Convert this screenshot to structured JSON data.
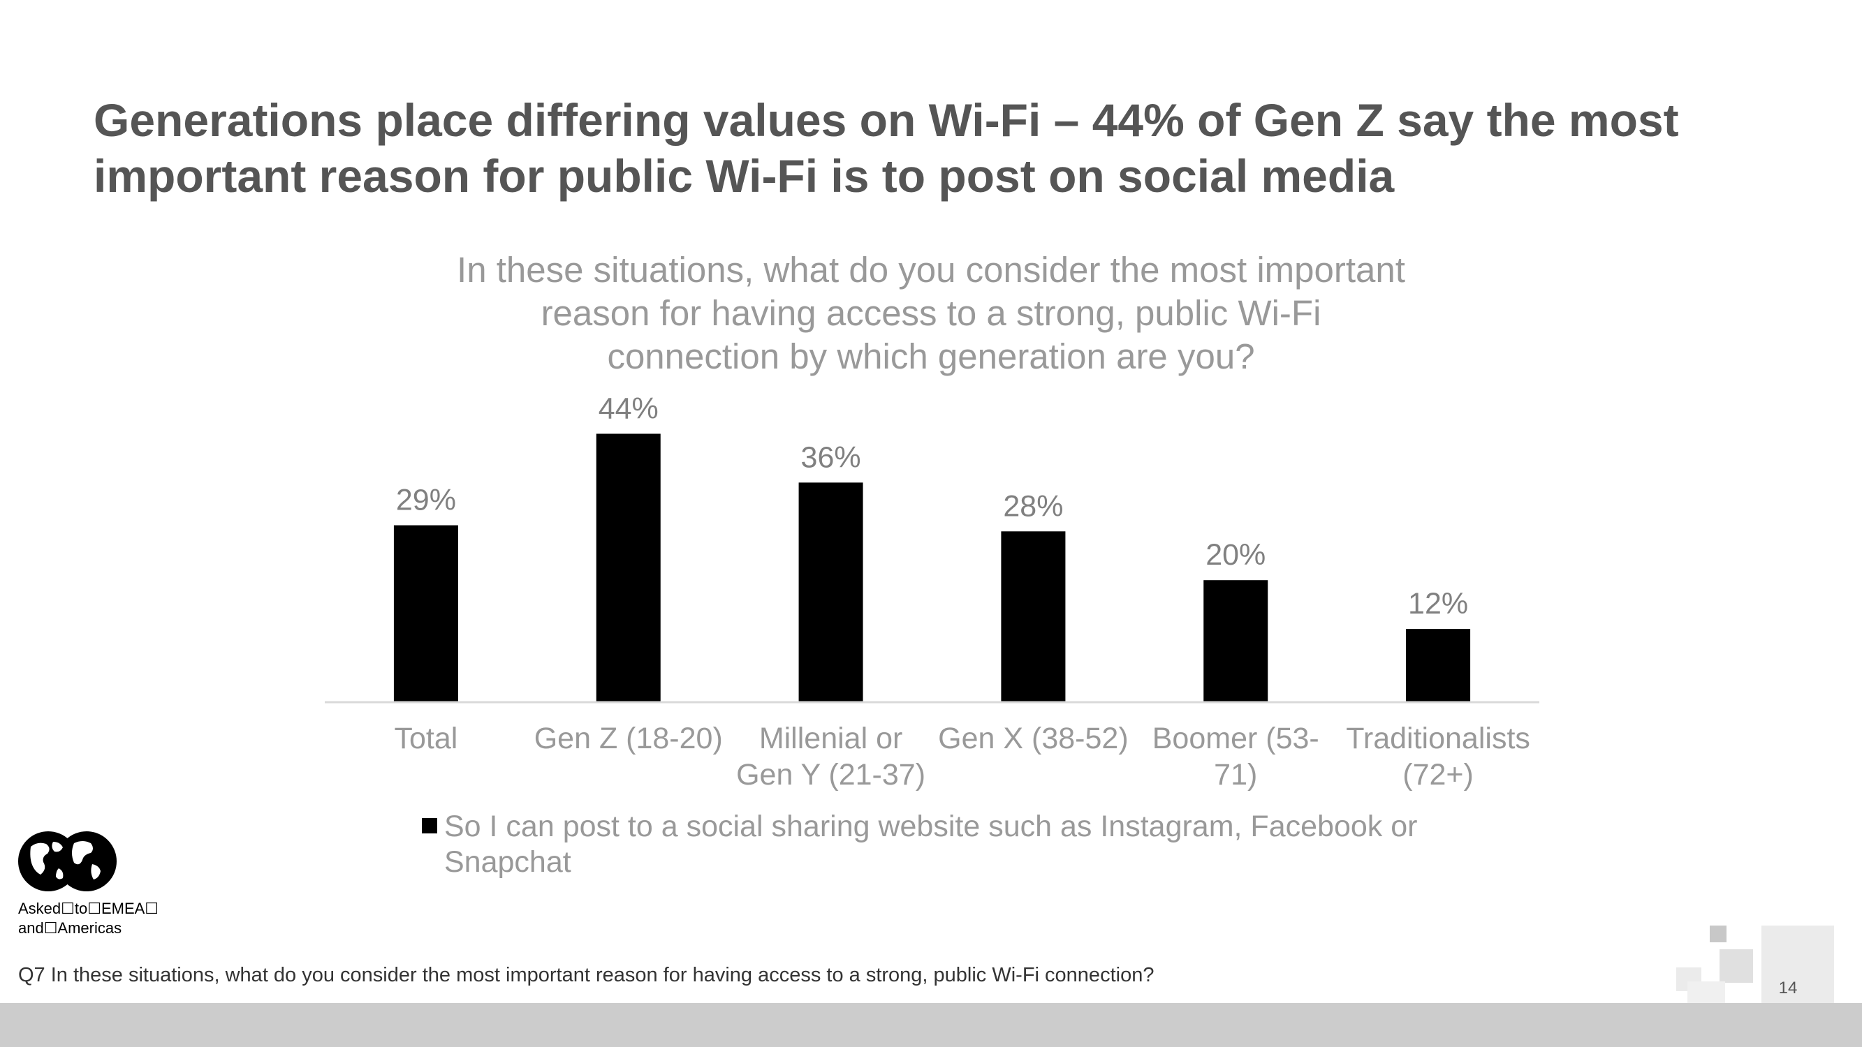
{
  "slide": {
    "title_lines": [
      "Generations place differing values on Wi-Fi – 44% of Gen Z say the most",
      "important reason for public Wi-Fi is to post on social media"
    ],
    "region_note_lines": [
      "Asked☐to☐EMEA☐",
      "and☐Americas"
    ],
    "footnote": "Q7 In these situations, what do you consider the most important reason for having access to a strong, public Wi-Fi connection?",
    "page_number": "14",
    "globe_icon": "globe-icon"
  },
  "chart_data": {
    "type": "bar",
    "title_lines": [
      "In these situations, what do you consider the most important",
      "reason for having access to a strong, public Wi-Fi",
      "connection by which generation are you?"
    ],
    "categories": [
      [
        "Total"
      ],
      [
        "Gen Z (18-20)"
      ],
      [
        "Millenial or",
        "Gen Y (21-37)"
      ],
      [
        "Gen X (38-52)"
      ],
      [
        "Boomer (53-",
        "71)"
      ],
      [
        "Traditionalists",
        "(72+)"
      ]
    ],
    "series": [
      {
        "name": "So I can post to a social sharing website such as Instagram, Facebook or Snapchat",
        "legend_lines": [
          "So I can post to a social sharing website such as Instagram, Facebook or",
          "Snapchat"
        ],
        "values": [
          29,
          44,
          36,
          28,
          20,
          12
        ],
        "labels": [
          "29%",
          "44%",
          "36%",
          "28%",
          "20%",
          "12%"
        ],
        "color": "#000000"
      }
    ],
    "xlabel": "",
    "ylabel": "",
    "ylim": [
      0,
      50
    ],
    "grid": false,
    "legend": "bottom"
  }
}
